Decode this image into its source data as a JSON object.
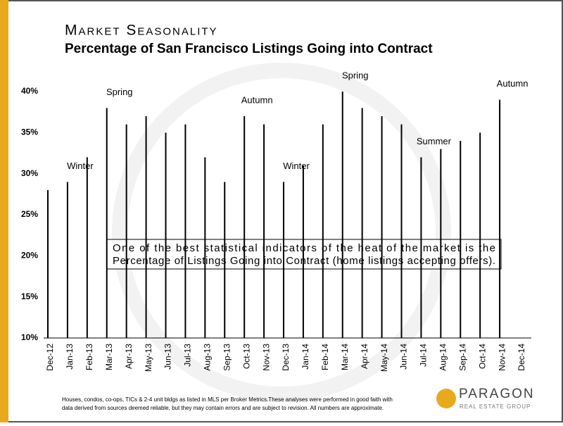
{
  "chart_data": {
    "type": "bar",
    "title": "Market Seasonality",
    "subtitle": "Percentage of San Francisco Listings Going into Contract",
    "categories": [
      "Dec-12",
      "Jan-13",
      "Feb-13",
      "Mar-13",
      "Apr-13",
      "May-13",
      "Jun-13",
      "Jul-13",
      "Aug-13",
      "Sep-13",
      "Oct-13",
      "Nov-13",
      "Dec-13",
      "Jan-14",
      "Feb-14",
      "Mar-14",
      "Apr-14",
      "May-14",
      "Jun-14",
      "Jul-14",
      "Aug-14",
      "Sep-14",
      "Oct-14",
      "Nov-14",
      "Dec-14"
    ],
    "values": [
      28,
      29,
      32,
      38,
      36,
      37,
      35,
      36,
      32,
      29,
      37,
      36,
      29,
      31,
      36,
      40,
      38,
      37,
      36,
      32,
      33,
      34,
      35,
      39,
      null
    ],
    "color": "#000000",
    "ylim": [
      10,
      40
    ],
    "yticks": [
      {
        "value": 10,
        "label": "10%"
      },
      {
        "value": 15,
        "label": "15%"
      },
      {
        "value": 20,
        "label": "20%"
      },
      {
        "value": 25,
        "label": "25%"
      },
      {
        "value": 30,
        "label": "30%"
      },
      {
        "value": 35,
        "label": "35%"
      },
      {
        "value": 40,
        "label": "40%"
      }
    ],
    "annotations": [
      {
        "text": "Winter",
        "x": "Jan-13"
      },
      {
        "text": "Spring",
        "x": "Mar-13"
      },
      {
        "text": "Autumn",
        "x": "Oct-13"
      },
      {
        "text": "Winter",
        "x": "Dec-13"
      },
      {
        "text": "Spring",
        "x": "Mar-14"
      },
      {
        "text": "Summer",
        "x": "Jul-14"
      },
      {
        "text": "Autumn",
        "x": "Nov-14"
      }
    ],
    "note": [
      "One of the best statistical indicators of the heat of the market is the",
      "Percentage of Listings Going into Contract (home listings accepting offers)."
    ],
    "footnote": [
      "Houses, condos, co-ops, TICs & 2-4 unit bldgs as listed in MLS per Broker Metrics.These analyses were performed in good faith with",
      "data derived from sources deemed reliable, but they may contain errors and are subject to revision. All numbers are approximate."
    ],
    "logo": {
      "name": "PARAGON",
      "tagline": "REAL ESTATE GROUP"
    }
  }
}
